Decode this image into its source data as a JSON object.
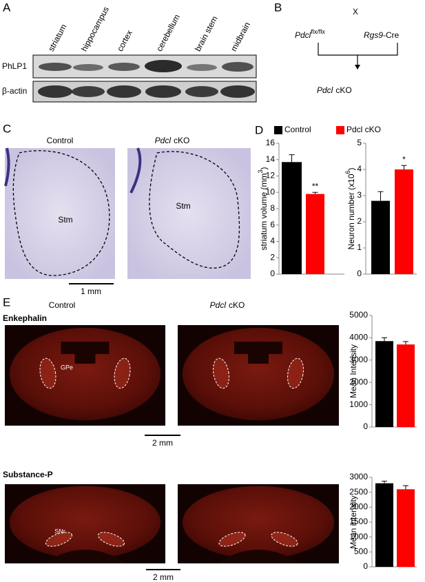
{
  "panel_a": {
    "label": "A",
    "lanes": [
      "striatum",
      "hippocampus",
      "cortex",
      "cerebellum",
      "brain stem",
      "midbrain"
    ],
    "rows": [
      "PhLP1",
      "β-actin"
    ]
  },
  "panel_b": {
    "label": "B",
    "cross": "X",
    "parent1": {
      "gene": "Pdcl",
      "sup": "flx/flx"
    },
    "parent2": {
      "gene": "Rgs9",
      "rest": "-Cre"
    },
    "offspring": {
      "gene": "Pdcl",
      "rest": "cKO"
    }
  },
  "panel_c": {
    "label": "C",
    "left_title": "Control",
    "right_title": {
      "gene": "Pdcl",
      "rest": "cKO"
    },
    "region": "Stm",
    "scale": "1 mm"
  },
  "panel_d": {
    "label": "D"
  },
  "panel_e": {
    "label": "E",
    "left_title": "Control",
    "right_title": {
      "gene": "Pdcl",
      "rest": "cKO"
    },
    "rows": [
      {
        "title": "Enkephalin",
        "region": "GPe",
        "scale": "2 mm"
      },
      {
        "title": "Substance-P",
        "region": "SNr",
        "scale": "2 mm"
      }
    ]
  },
  "chart_data": [
    {
      "type": "bar",
      "ylabel": [
        "striatum volume (mm",
        "3",
        ")"
      ],
      "ylim": [
        0,
        16
      ],
      "yticks": [
        0,
        2,
        4,
        6,
        8,
        10,
        12,
        14,
        16
      ],
      "legend": "top",
      "series": [
        {
          "name": "Control",
          "color": "#000000",
          "values": [
            13.7
          ],
          "errors": [
            0.9
          ]
        },
        {
          "name": "Pdcl cKO",
          "color": "#ff0000",
          "values": [
            9.8
          ],
          "errors": [
            0.2
          ],
          "annotation": "**"
        }
      ]
    },
    {
      "type": "bar",
      "ylabel": [
        "Neuron number (x10",
        "6",
        ")"
      ],
      "ylim": [
        0,
        5
      ],
      "yticks": [
        0,
        1,
        2,
        3,
        4,
        5
      ],
      "series": [
        {
          "color": "#000000",
          "values": [
            2.8
          ],
          "errors": [
            0.35
          ]
        },
        {
          "color": "#ff0000",
          "values": [
            4.0
          ],
          "errors": [
            0.15
          ],
          "annotation": "*"
        }
      ]
    },
    {
      "type": "bar",
      "ylabel": [
        "Mean Intensity"
      ],
      "ylim": [
        0,
        5000
      ],
      "yticks": [
        0,
        1000,
        2000,
        3000,
        4000,
        5000
      ],
      "series": [
        {
          "color": "#000000",
          "values": [
            3850
          ],
          "errors": [
            150
          ]
        },
        {
          "color": "#ff0000",
          "values": [
            3700
          ],
          "errors": [
            130
          ]
        }
      ]
    },
    {
      "type": "bar",
      "ylabel": [
        "Mean intensity"
      ],
      "ylim": [
        0,
        3000
      ],
      "yticks": [
        0,
        500,
        1000,
        1500,
        2000,
        2500,
        3000
      ],
      "series": [
        {
          "color": "#000000",
          "values": [
            2800
          ],
          "errors": [
            70
          ]
        },
        {
          "color": "#ff0000",
          "values": [
            2600
          ],
          "errors": [
            120
          ]
        }
      ]
    }
  ]
}
